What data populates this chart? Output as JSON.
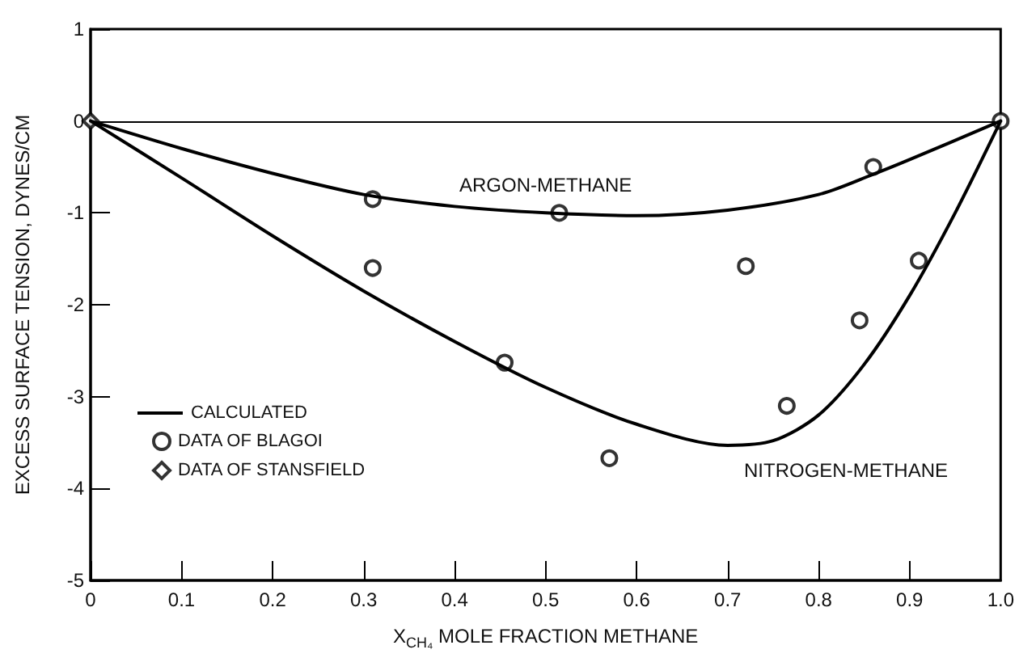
{
  "chart_data": {
    "type": "line",
    "xlabel": "X$_{CH₄}$ MOLE FRACTION METHANE",
    "ylabel": "EXCESS SURFACE TENSION, DYNES/CM",
    "xlim": [
      0,
      1
    ],
    "xticks": [
      0,
      0.1,
      0.2,
      0.3,
      0.4,
      0.5,
      0.6,
      0.7,
      0.8,
      0.9,
      {
        "value": 1,
        "label": "1.0"
      }
    ],
    "ylim": [
      -5,
      1
    ],
    "yticks": [
      -5,
      -4,
      -3,
      -2,
      -1,
      0,
      1
    ],
    "grid": false,
    "legend": "bottom left",
    "ref_lines": [
      {
        "axis": "y",
        "value": 0,
        "label": null,
        "color": "#000000"
      }
    ],
    "annotations": [
      "ARGON-METHANE",
      "NITROGEN-METHANE"
    ],
    "series": [
      {
        "name": "CALCULATED",
        "color": "#000000",
        "marker": "none",
        "line_style": "solid",
        "x": [
          0,
          0.1,
          0.2,
          0.3,
          0.4,
          0.5,
          0.6,
          0.7,
          0.8,
          0.86,
          0.9,
          1,
          null,
          0,
          0.1,
          0.2,
          0.3,
          0.4,
          0.5,
          0.6,
          0.7,
          0.75,
          0.8,
          0.85,
          0.9,
          0.95,
          1
        ],
        "values": [
          0,
          -0.3,
          -0.57,
          -0.8,
          -0.93,
          -1.0,
          -1.03,
          -0.97,
          -0.8,
          -0.58,
          -0.42,
          0,
          null,
          0,
          -0.62,
          -1.25,
          -1.85,
          -2.4,
          -2.9,
          -3.3,
          -3.53,
          -3.48,
          -3.2,
          -2.65,
          -1.9,
          -1.0,
          0
        ]
      },
      {
        "name": "DATA OF BLAGOI",
        "type": "scatter",
        "color": "#000000",
        "marker": "circle",
        "x": [
          0.31,
          0.31,
          0.455,
          0.515,
          0.57,
          0.72,
          0.765,
          0.845,
          0.86,
          0.91,
          1
        ],
        "values": [
          -0.85,
          -1.6,
          -2.63,
          -1.0,
          -3.67,
          -1.58,
          -3.1,
          -2.17,
          -0.5,
          -1.52,
          0
        ]
      },
      {
        "name": "DATA OF STANSFIELD",
        "type": "scatter",
        "color": "#000000",
        "marker": "diamond",
        "x": [
          0
        ],
        "values": [
          0
        ]
      }
    ]
  }
}
